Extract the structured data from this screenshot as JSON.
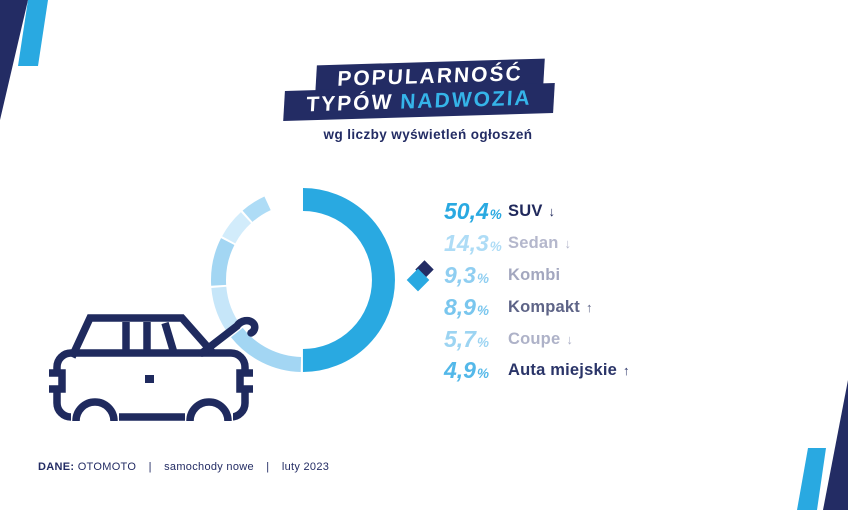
{
  "colors": {
    "navy": "#232C64",
    "car_navy": "#1F2A5E",
    "bright_blue": "#29A9E1",
    "accent_blue": "#35B4E9",
    "white": "#FFFFFF"
  },
  "header": {
    "line1": "POPULARNOŚĆ",
    "line2_white": "TYPÓW",
    "line2_accent": "NADWOZIA",
    "subtitle": "wg liczby wyświetleń ogłoszeń"
  },
  "chart_data": {
    "type": "donut",
    "title": "Popularność typów nadwozia wg liczby wyświetleń ogłoszeń",
    "unit": "%",
    "start_angle_deg": 0,
    "gap_deg": 1.4,
    "outer_radius": 92,
    "center": [
      303,
      280
    ],
    "default_ring_width": 15,
    "legend_position": "right",
    "remainder_blank_pct": 6.5,
    "segments": [
      {
        "label": "SUV",
        "value": 50.4,
        "display": "50,4",
        "trend": "down",
        "color": "#29A9E1",
        "ring_width": 23,
        "value_color": "#29A9E1",
        "label_color": "#20295C"
      },
      {
        "label": "Sedan",
        "value": 14.3,
        "display": "14,3",
        "trend": "down",
        "color": "#A3D6F3",
        "value_color": "#AEDCF6",
        "label_color": "#B4B7CC"
      },
      {
        "label": "Kombi",
        "value": 9.3,
        "display": "9,3",
        "trend": null,
        "color": "#C6E6F9",
        "value_color": "#8FCEF1",
        "label_color": "#A3A7BF"
      },
      {
        "label": "Kompakt",
        "value": 8.9,
        "display": "8,9",
        "trend": "up",
        "color": "#A3D6F3",
        "value_color": "#79C6EE",
        "label_color": "#5E6487"
      },
      {
        "label": "Coupe",
        "value": 5.7,
        "display": "5,7",
        "trend": "down",
        "color": "#D2ECFB",
        "value_color": "#9CD4F2",
        "label_color": "#AEB2C8"
      },
      {
        "label": "Auta miejskie",
        "value": 4.9,
        "display": "4,9",
        "trend": "up",
        "color": "#AEDCF6",
        "value_color": "#53B8E9",
        "label_color": "#2A3468"
      }
    ]
  },
  "trend_symbols": {
    "down": "↓",
    "up": "↑"
  },
  "footer": {
    "prefix": "DANE:",
    "source": "OTOMOTO",
    "separator": "|",
    "category": "samochody nowe",
    "date": "luty 2023"
  }
}
